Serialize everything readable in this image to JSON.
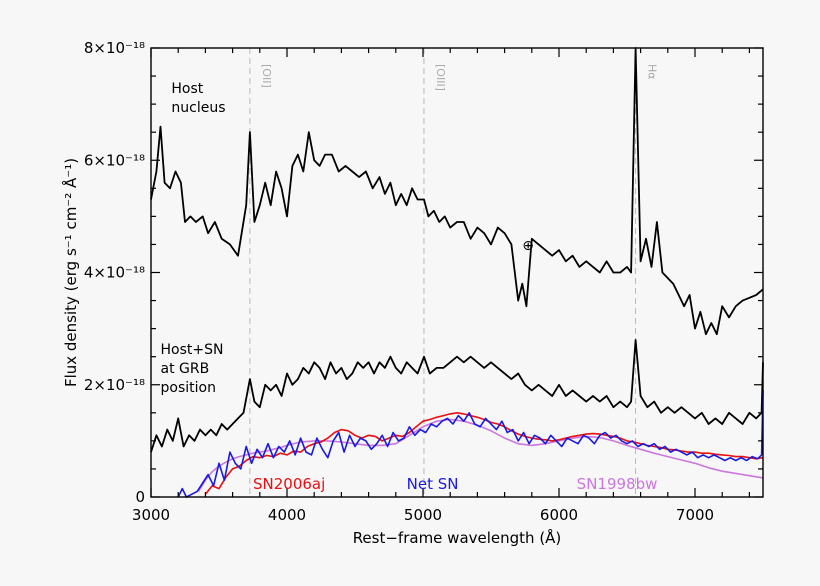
{
  "chart_data": {
    "type": "line",
    "xlabel": "Rest−frame wavelength (Å)",
    "ylabel": "Flux density (erg s⁻¹ cm⁻² Å⁻¹)",
    "xlim": [
      3000,
      7500
    ],
    "ylim": [
      0,
      8e-18
    ],
    "x_ticks": [
      {
        "value": 3000,
        "label": "3000"
      },
      {
        "value": 4000,
        "label": "4000"
      },
      {
        "value": 5000,
        "label": "5000"
      },
      {
        "value": 6000,
        "label": "6000"
      },
      {
        "value": 7000,
        "label": "7000"
      }
    ],
    "y_ticks": [
      {
        "value": 0,
        "label": "0"
      },
      {
        "value": 2e-18,
        "label": "2×10⁻¹⁸"
      },
      {
        "value": 4e-18,
        "label": "4×10⁻¹⁸"
      },
      {
        "value": 6e-18,
        "label": "6×10⁻¹⁸"
      },
      {
        "value": 8e-18,
        "label": "8×10⁻¹⁸"
      }
    ],
    "emission_lines": [
      {
        "x": 3727,
        "label": "[OII]"
      },
      {
        "x": 5007,
        "label": "[OIII]"
      },
      {
        "x": 6563,
        "label": "Hα"
      }
    ],
    "annotations": [
      {
        "x": 3150,
        "y": 7.2e-18,
        "lines": [
          "Host",
          "nucleus"
        ]
      },
      {
        "x": 3070,
        "y": 2.55e-18,
        "lines": [
          "Host+SN",
          "at GRB",
          "position"
        ]
      },
      {
        "x": 5730,
        "y": 4.4e-18,
        "text": "⊕"
      }
    ],
    "series": [
      {
        "label": "Host nucleus",
        "color": "#000000",
        "x": [
          3000,
          3040,
          3070,
          3100,
          3140,
          3180,
          3220,
          3250,
          3290,
          3330,
          3380,
          3420,
          3470,
          3520,
          3580,
          3640,
          3700,
          3727,
          3760,
          3800,
          3840,
          3880,
          3920,
          3960,
          4000,
          4040,
          4080,
          4120,
          4160,
          4200,
          4240,
          4280,
          4330,
          4380,
          4430,
          4480,
          4530,
          4580,
          4630,
          4680,
          4720,
          4760,
          4800,
          4840,
          4880,
          4920,
          4960,
          5007,
          5040,
          5080,
          5120,
          5160,
          5200,
          5250,
          5300,
          5350,
          5400,
          5450,
          5500,
          5550,
          5600,
          5650,
          5700,
          5730,
          5760,
          5800,
          5850,
          5900,
          5950,
          6000,
          6050,
          6100,
          6150,
          6200,
          6250,
          6300,
          6350,
          6400,
          6450,
          6500,
          6530,
          6563,
          6600,
          6640,
          6680,
          6720,
          6760,
          6800,
          6840,
          6880,
          6920,
          6960,
          7000,
          7040,
          7080,
          7120,
          7160,
          7200,
          7250,
          7300,
          7350,
          7400,
          7450,
          7500
        ],
        "y": [
          5.3e-18,
          5.8e-18,
          6.6e-18,
          5.6e-18,
          5.5e-18,
          5.8e-18,
          5.6e-18,
          4.9e-18,
          5e-18,
          4.9e-18,
          5e-18,
          4.7e-18,
          4.9e-18,
          4.6e-18,
          4.5e-18,
          4.3e-18,
          5.2e-18,
          6.5e-18,
          4.9e-18,
          5.2e-18,
          5.6e-18,
          5.2e-18,
          5.8e-18,
          5.5e-18,
          5e-18,
          5.9e-18,
          6.1e-18,
          5.8e-18,
          6.5e-18,
          6e-18,
          5.9e-18,
          6.1e-18,
          6.1e-18,
          5.8e-18,
          5.9e-18,
          5.8e-18,
          5.7e-18,
          5.8e-18,
          5.5e-18,
          5.7e-18,
          5.4e-18,
          5.6e-18,
          5.2e-18,
          5.4e-18,
          5.2e-18,
          5.5e-18,
          5.3e-18,
          5.3e-18,
          5e-18,
          5.1e-18,
          4.9e-18,
          5e-18,
          4.8e-18,
          4.9e-18,
          4.9e-18,
          4.6e-18,
          4.8e-18,
          4.7e-18,
          4.5e-18,
          4.8e-18,
          4.7e-18,
          4.5e-18,
          3.5e-18,
          3.8e-18,
          3.4e-18,
          4.6e-18,
          4.5e-18,
          4.4e-18,
          4.3e-18,
          4.4e-18,
          4.2e-18,
          4.3e-18,
          4.1e-18,
          4.2e-18,
          4.1e-18,
          4e-18,
          4.2e-18,
          4e-18,
          4e-18,
          4.1e-18,
          4e-18,
          8e-18,
          4.2e-18,
          4.6e-18,
          4.1e-18,
          4.9e-18,
          4e-18,
          3.9e-18,
          3.8e-18,
          3.6e-18,
          3.4e-18,
          3.6e-18,
          3e-18,
          3.3e-18,
          2.9e-18,
          3.1e-18,
          2.9e-18,
          3.4e-18,
          3.2e-18,
          3.4e-18,
          3.5e-18,
          3.55e-18,
          3.6e-18,
          3.7e-18
        ]
      },
      {
        "label": "Host+SN at GRB position",
        "color": "#000000",
        "x": [
          3000,
          3040,
          3080,
          3120,
          3160,
          3200,
          3240,
          3280,
          3320,
          3360,
          3400,
          3440,
          3480,
          3520,
          3560,
          3600,
          3640,
          3680,
          3727,
          3760,
          3800,
          3840,
          3880,
          3920,
          3960,
          4000,
          4040,
          4080,
          4120,
          4160,
          4200,
          4240,
          4280,
          4320,
          4360,
          4400,
          4440,
          4480,
          4520,
          4560,
          4600,
          4640,
          4680,
          4720,
          4760,
          4800,
          4840,
          4880,
          4920,
          4960,
          5007,
          5050,
          5100,
          5150,
          5200,
          5250,
          5300,
          5350,
          5400,
          5450,
          5500,
          5550,
          5600,
          5650,
          5700,
          5750,
          5800,
          5850,
          5900,
          5950,
          6000,
          6050,
          6100,
          6150,
          6200,
          6250,
          6300,
          6350,
          6400,
          6450,
          6500,
          6530,
          6563,
          6600,
          6650,
          6700,
          6750,
          6800,
          6850,
          6900,
          6950,
          7000,
          7050,
          7100,
          7150,
          7200,
          7250,
          7300,
          7350,
          7400,
          7450,
          7490,
          7500
        ],
        "y": [
          8e-19,
          1.1e-18,
          9e-19,
          1.2e-18,
          1e-18,
          1.4e-18,
          9e-19,
          1.1e-18,
          1e-18,
          1.2e-18,
          1.1e-18,
          1.2e-18,
          1.1e-18,
          1.3e-18,
          1.2e-18,
          1.3e-18,
          1.4e-18,
          1.5e-18,
          2.1e-18,
          1.7e-18,
          1.6e-18,
          2e-18,
          1.9e-18,
          2e-18,
          1.8e-18,
          2.2e-18,
          2e-18,
          2.1e-18,
          2.3e-18,
          2.2e-18,
          2.4e-18,
          2.3e-18,
          2.1e-18,
          2.4e-18,
          2.2e-18,
          2.3e-18,
          2.1e-18,
          2.2e-18,
          2.4e-18,
          2.3e-18,
          2.4e-18,
          2.2e-18,
          2.4e-18,
          2.3e-18,
          2.5e-18,
          2.3e-18,
          2.2e-18,
          2.4e-18,
          2.3e-18,
          2.2e-18,
          2.5e-18,
          2.2e-18,
          2.3e-18,
          2.3e-18,
          2.4e-18,
          2.5e-18,
          2.4e-18,
          2.5e-18,
          2.4e-18,
          2.3e-18,
          2.4e-18,
          2.3e-18,
          2.2e-18,
          2.1e-18,
          2.2e-18,
          2e-18,
          1.9e-18,
          2e-18,
          1.9e-18,
          1.8e-18,
          2e-18,
          1.8e-18,
          1.9e-18,
          1.8e-18,
          1.7e-18,
          1.8e-18,
          1.7e-18,
          1.8e-18,
          1.6e-18,
          1.7e-18,
          1.6e-18,
          1.7e-18,
          2.8e-18,
          1.8e-18,
          1.6e-18,
          1.7e-18,
          1.5e-18,
          1.6e-18,
          1.5e-18,
          1.6e-18,
          1.5e-18,
          1.4e-18,
          1.5e-18,
          1.3e-18,
          1.4e-18,
          1.3e-18,
          1.5e-18,
          1.4e-18,
          1.3e-18,
          1.5e-18,
          1.4e-18,
          1.5e-18,
          2.4e-18
        ]
      },
      {
        "label": "SN1998bw",
        "color": "#cc77dd",
        "x": [
          3350,
          3400,
          3450,
          3500,
          3550,
          3600,
          3650,
          3700,
          3750,
          3800,
          3850,
          3900,
          3950,
          4000,
          4100,
          4200,
          4300,
          4400,
          4500,
          4600,
          4700,
          4800,
          4900,
          5000,
          5100,
          5200,
          5300,
          5400,
          5500,
          5600,
          5700,
          5800,
          5900,
          6000,
          6100,
          6200,
          6300,
          6400,
          6500,
          6600,
          6700,
          6800,
          6900,
          7000,
          7100,
          7200,
          7300,
          7400,
          7500
        ],
        "y": [
          1e-19,
          3e-19,
          4.5e-19,
          5.5e-19,
          6.2e-19,
          6.8e-19,
          7.2e-19,
          7.5e-19,
          7.8e-19,
          8e-19,
          8.2e-19,
          8.5e-19,
          8.8e-19,
          9.2e-19,
          9.8e-19,
          1e-18,
          1e-18,
          9.8e-19,
          9.5e-19,
          9.2e-19,
          9.2e-19,
          9.5e-19,
          1.1e-18,
          1.25e-18,
          1.35e-18,
          1.38e-18,
          1.35e-18,
          1.28e-18,
          1.18e-18,
          1.05e-18,
          9.5e-19,
          9.2e-19,
          9.5e-19,
          1e-18,
          1.05e-18,
          1.08e-18,
          1.06e-18,
          1e-18,
          9.2e-19,
          8.5e-19,
          7.8e-19,
          7.2e-19,
          6.6e-19,
          6e-19,
          5.2e-19,
          4.6e-19,
          4.2e-19,
          3.8e-19,
          3.4e-19
        ]
      },
      {
        "label": "SN2006aj",
        "color": "#e81010",
        "x": [
          3400,
          3450,
          3500,
          3550,
          3600,
          3650,
          3700,
          3750,
          3800,
          3850,
          3900,
          3950,
          4000,
          4050,
          4100,
          4150,
          4200,
          4250,
          4300,
          4350,
          4400,
          4450,
          4500,
          4550,
          4600,
          4650,
          4700,
          4750,
          4800,
          4850,
          4900,
          4950,
          5000,
          5050,
          5100,
          5150,
          5200,
          5250,
          5300,
          5350,
          5400,
          5450,
          5500,
          5550,
          5600,
          5650,
          5700,
          5750,
          5800,
          5850,
          5900,
          5950,
          6000,
          6050,
          6100,
          6150,
          6200,
          6250,
          6300,
          6350,
          6400,
          6450,
          6500,
          6550,
          6600,
          6650,
          6700,
          6750,
          6800,
          6850,
          6900,
          6950,
          7000,
          7050,
          7100,
          7150,
          7200,
          7250,
          7300,
          7350,
          7400,
          7450,
          7500
        ],
        "y": [
          5e-20,
          2e-19,
          1.5e-19,
          3.5e-19,
          5e-19,
          5.5e-19,
          6.5e-19,
          7.2e-19,
          7e-19,
          7.4e-19,
          7.2e-19,
          7.8e-19,
          7.5e-19,
          8.2e-19,
          8e-19,
          9e-19,
          9.5e-19,
          9.8e-19,
          1.05e-18,
          1.15e-18,
          1.2e-18,
          1.18e-18,
          1.1e-18,
          1.05e-18,
          1.1e-18,
          1.08e-18,
          1e-18,
          1.05e-18,
          1.1e-18,
          1.08e-18,
          1.15e-18,
          1.25e-18,
          1.35e-18,
          1.38e-18,
          1.42e-18,
          1.45e-18,
          1.48e-18,
          1.5e-18,
          1.48e-18,
          1.45e-18,
          1.42e-18,
          1.38e-18,
          1.33e-18,
          1.3e-18,
          1.25e-18,
          1.18e-18,
          1.12e-18,
          1.08e-18,
          1.05e-18,
          1.03e-18,
          1.02e-18,
          1e-18,
          1.02e-18,
          1.05e-18,
          1.08e-18,
          1.1e-18,
          1.12e-18,
          1.13e-18,
          1.12e-18,
          1.1e-18,
          1.08e-18,
          1.05e-18,
          1e-18,
          9.8e-19,
          9.5e-19,
          9.2e-19,
          9e-19,
          8.8e-19,
          8.5e-19,
          8.4e-19,
          8.2e-19,
          8e-19,
          8e-19,
          7.8e-19,
          7.8e-19,
          7.6e-19,
          7.5e-19,
          7.4e-19,
          7.2e-19,
          7.2e-19,
          7e-19,
          6.8e-19,
          7e-19
        ]
      },
      {
        "label": "Net SN",
        "color": "#1a1ae0",
        "x": [
          3200,
          3230,
          3260,
          3300,
          3340,
          3380,
          3420,
          3460,
          3500,
          3540,
          3580,
          3620,
          3660,
          3700,
          3740,
          3780,
          3820,
          3860,
          3900,
          3940,
          3980,
          4020,
          4060,
          4100,
          4140,
          4180,
          4220,
          4260,
          4300,
          4340,
          4380,
          4420,
          4460,
          4500,
          4540,
          4580,
          4620,
          4660,
          4700,
          4740,
          4780,
          4820,
          4860,
          4900,
          4940,
          4980,
          5020,
          5060,
          5100,
          5140,
          5180,
          5220,
          5260,
          5300,
          5340,
          5380,
          5420,
          5460,
          5500,
          5540,
          5580,
          5620,
          5660,
          5700,
          5740,
          5780,
          5820,
          5860,
          5900,
          5940,
          5980,
          6020,
          6060,
          6100,
          6140,
          6180,
          6220,
          6260,
          6300,
          6340,
          6380,
          6420,
          6460,
          6500,
          6540,
          6580,
          6620,
          6660,
          6700,
          6740,
          6780,
          6820,
          6860,
          6900,
          6940,
          6980,
          7020,
          7060,
          7100,
          7140,
          7180,
          7220,
          7260,
          7300,
          7340,
          7380,
          7420,
          7460,
          7490,
          7500
        ],
        "y": [
          0.0,
          1.5e-19,
          0.0,
          5e-20,
          1e-19,
          2.5e-19,
          4e-19,
          2e-19,
          6e-19,
          3e-19,
          8e-19,
          6e-19,
          5e-19,
          9e-19,
          6e-19,
          8.5e-19,
          7e-19,
          9.5e-19,
          7e-19,
          9e-19,
          8e-19,
          1e-18,
          7.5e-19,
          1.05e-18,
          8e-19,
          7.5e-19,
          1.05e-18,
          8.5e-19,
          7e-19,
          1e-18,
          1.15e-18,
          8e-19,
          1.1e-18,
          9e-19,
          1.05e-18,
          1e-18,
          8.5e-19,
          9.5e-19,
          1.1e-18,
          9e-19,
          1.15e-18,
          1e-18,
          1.05e-18,
          1.25e-18,
          1.1e-18,
          1.2e-18,
          1.15e-18,
          1.3e-18,
          1.25e-18,
          1.35e-18,
          1.4e-18,
          1.3e-18,
          1.45e-18,
          1.35e-18,
          1.5e-18,
          1.3e-18,
          1.25e-18,
          1.4e-18,
          1.3e-18,
          1.2e-18,
          1.35e-18,
          1.15e-18,
          1.2e-18,
          1e-18,
          1.15e-18,
          9.5e-19,
          1.1e-18,
          1.05e-18,
          9.5e-19,
          1.1e-18,
          1e-18,
          9e-19,
          1.05e-18,
          1e-18,
          9.5e-19,
          1.1e-18,
          1.05e-18,
          9.5e-19,
          1.1e-18,
          1.15e-18,
          1.05e-18,
          1.1e-18,
          1e-18,
          9.5e-19,
          1e-18,
          9e-19,
          9.5e-19,
          9e-19,
          9.5e-19,
          8.5e-19,
          9e-19,
          8e-19,
          8.5e-19,
          8e-19,
          7.5e-19,
          8e-19,
          7e-19,
          7.5e-19,
          7e-19,
          7.5e-19,
          7e-19,
          6.5e-19,
          7e-19,
          6.5e-19,
          7e-19,
          6.5e-19,
          7.2e-19,
          6.8e-19,
          7.5e-19,
          1.9e-18
        ]
      }
    ],
    "legend": [
      {
        "label": "SN2006aj",
        "color": "#e81010",
        "x": 3750
      },
      {
        "label": "Net SN",
        "color": "#1a1ae0",
        "x": 4880
      },
      {
        "label": "SN1998bw",
        "color": "#cc77dd",
        "x": 6130
      }
    ]
  }
}
